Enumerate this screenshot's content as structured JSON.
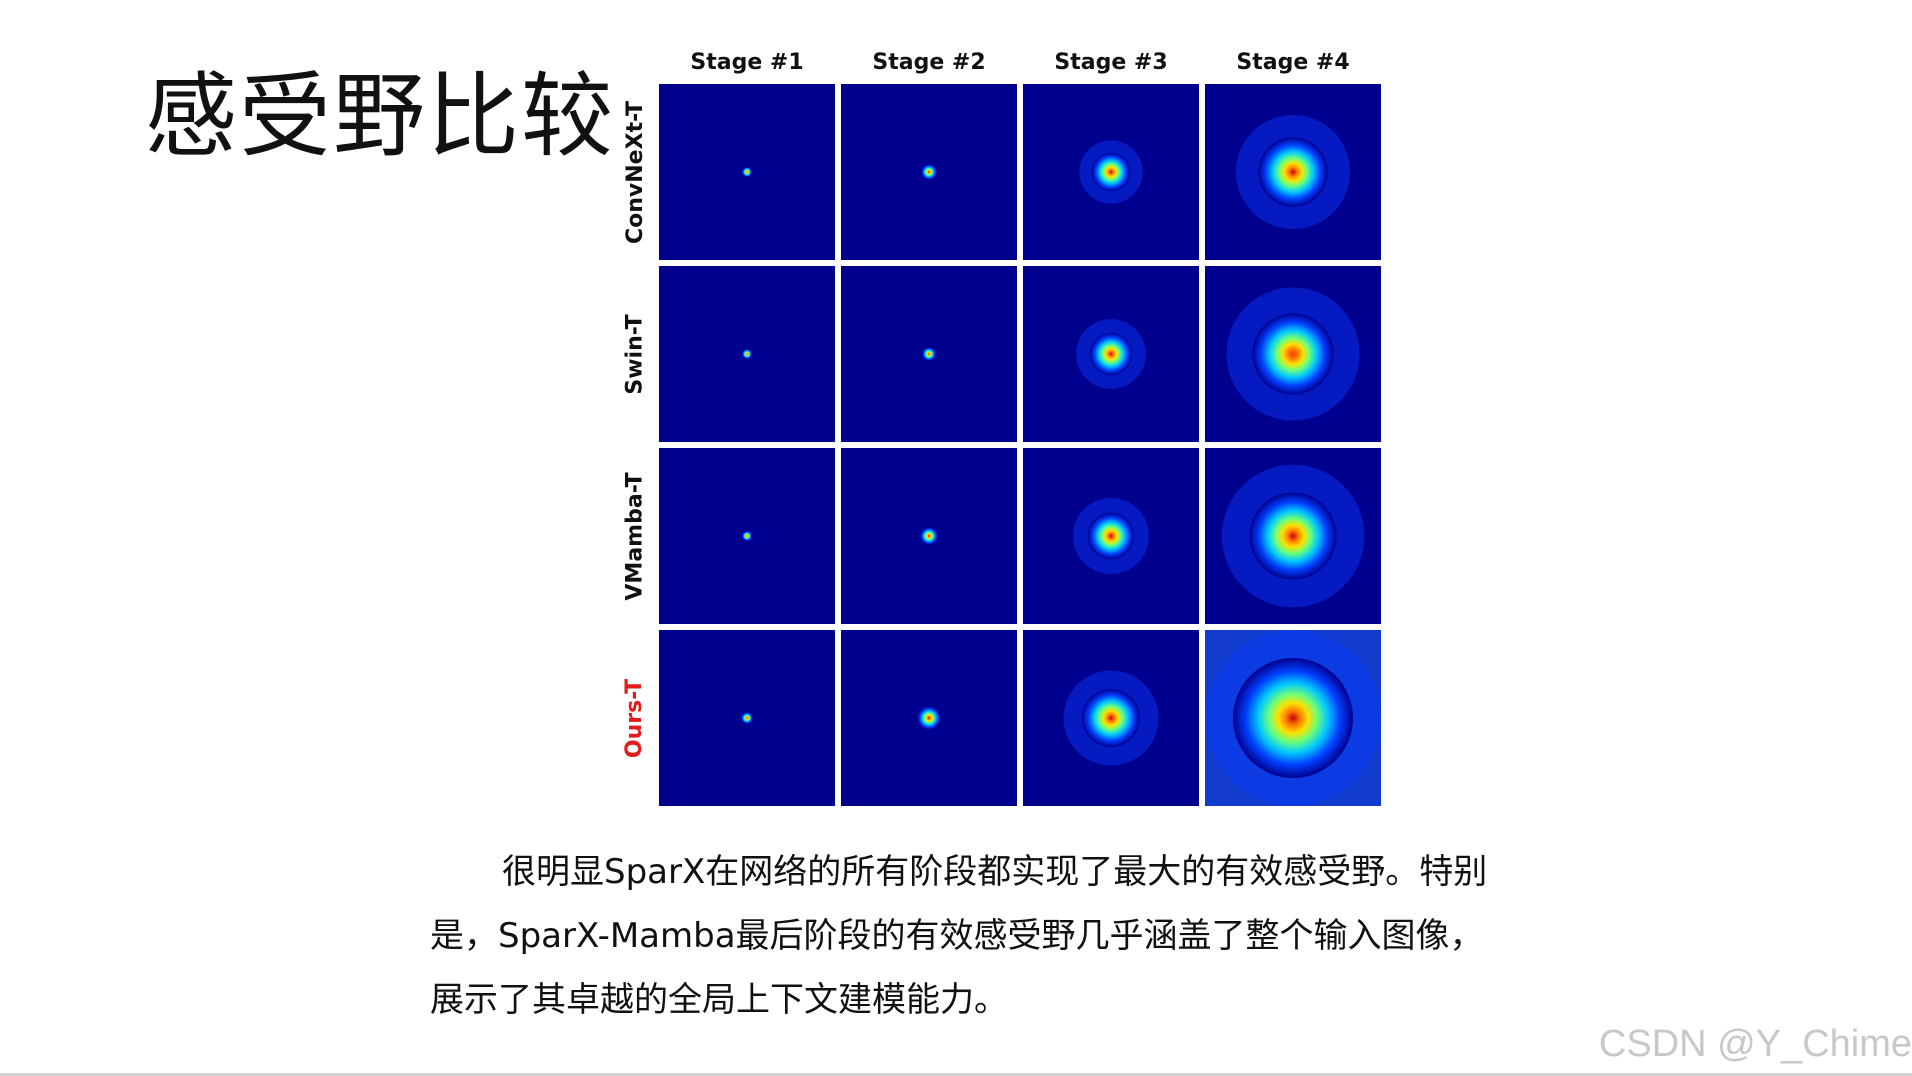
{
  "slide": {
    "title": "感受野比较",
    "caption_lines": [
      "很明显SparX在网络的所有阶段都实现了最大的有效感受野。特别",
      "是，SparX-Mamba最后阶段的有效感受野几乎涵盖了整个输入图像，",
      "展示了其卓越的全局上下文建模能力。"
    ],
    "watermark": "CSDN @Y_Chime"
  },
  "figure": {
    "columns": [
      "Stage #1",
      "Stage #2",
      "Stage #3",
      "Stage #4"
    ],
    "rows": [
      {
        "label": "ConvNeXt-T",
        "highlight": false
      },
      {
        "label": "Swin-T",
        "highlight": false
      },
      {
        "label": "VMamba-T",
        "highlight": false
      },
      {
        "label": "Ours-T",
        "highlight": true
      }
    ],
    "colormap": "jet",
    "background_color": "#00008f",
    "highlight_color": "#e31b1b",
    "relative_receptive_field_extent": [
      [
        0.04,
        0.08,
        0.2,
        0.36
      ],
      [
        0.03,
        0.07,
        0.22,
        0.42
      ],
      [
        0.05,
        0.09,
        0.24,
        0.45
      ],
      [
        0.06,
        0.12,
        0.3,
        0.62
      ]
    ],
    "relative_peak_intensity": [
      [
        0.6,
        0.85,
        0.9,
        0.85
      ],
      [
        0.55,
        0.8,
        0.85,
        0.75
      ],
      [
        0.65,
        0.9,
        0.85,
        0.85
      ],
      [
        0.7,
        0.95,
        0.95,
        0.9
      ]
    ]
  }
}
